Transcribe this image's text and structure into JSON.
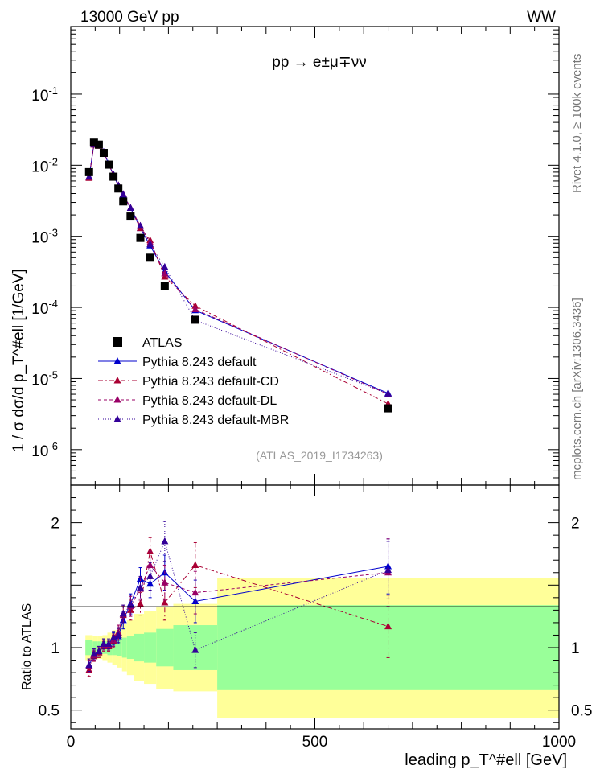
{
  "header": {
    "left": "13000 GeV pp",
    "right": "WW"
  },
  "side_labels": {
    "rivet": "Rivet 4.1.0, ≥ 100k events",
    "mcplots": "mcplots.cern.ch [arXiv:1306.3436]"
  },
  "colors": {
    "atlas": "#000000",
    "default": "#0000cc",
    "cd": "#aa0033",
    "dl": "#990066",
    "mbr": "#330099",
    "band_inner": "#99ff99",
    "band_outer": "#ffff99"
  },
  "chart_data": [
    {
      "type": "scatter",
      "panel": "main",
      "title": "pp → e±μ∓νν",
      "ylabel": "1 / σ  dσ/d p_T^#ell [1/GeV]",
      "xlabel": "leading p_T^#ell [GeV]",
      "xlim": [
        0,
        1000
      ],
      "ylim_log10": [
        -6.5,
        -0.05
      ],
      "yscale": "log",
      "ytick_labels": [
        "10^-6",
        "10^-5",
        "10^-4",
        "10^-3",
        "10^-2",
        "10^-1"
      ],
      "annotation": "(ATLAS_2019_I1734263)",
      "x": [
        37.5,
        47.5,
        57.5,
        67.5,
        77.5,
        87.5,
        97.5,
        107.5,
        122.5,
        142.5,
        162.5,
        192.5,
        255,
        650
      ],
      "atlas": [
        0.008,
        0.0208,
        0.0195,
        0.0149,
        0.0102,
        0.0069,
        0.0047,
        0.0031,
        0.0019,
        0.00095,
        0.0005,
        0.0002,
        6.7e-05,
        3.8e-06
      ],
      "series": [
        {
          "name": "Pythia 8.243 default",
          "key": "default",
          "dash": "",
          "values": [
            0.0068,
            0.0196,
            0.0189,
            0.0154,
            0.0105,
            0.0073,
            0.0051,
            0.0038,
            0.0025,
            0.0013,
            0.00074,
            0.00032,
            9.1e-05,
            6.2e-06
          ]
        },
        {
          "name": "Pythia 8.243 default-CD",
          "key": "cd",
          "dash": "6,3,2,3",
          "values": [
            0.0066,
            0.0194,
            0.0187,
            0.0151,
            0.0103,
            0.0072,
            0.0052,
            0.0039,
            0.0025,
            0.0013,
            0.00088,
            0.00027,
            0.000105,
            4.4e-06
          ]
        },
        {
          "name": "Pythia 8.243 default-DL",
          "key": "dl",
          "dash": "4,3",
          "values": [
            0.0068,
            0.0196,
            0.0189,
            0.0152,
            0.0104,
            0.0073,
            0.0052,
            0.0039,
            0.0025,
            0.0014,
            0.00082,
            0.0003,
            9.4e-05,
            6e-06
          ]
        },
        {
          "name": "Pythia 8.243 default-MBR",
          "key": "mbr",
          "dash": "1,2",
          "values": [
            0.0069,
            0.0197,
            0.0189,
            0.0153,
            0.0105,
            0.0074,
            0.0052,
            0.0039,
            0.0025,
            0.0014,
            0.00077,
            0.00037,
            6.6e-05,
            6.1e-06
          ]
        }
      ],
      "legend": [
        "ATLAS",
        "Pythia 8.243 default",
        "Pythia 8.243 default-CD",
        "Pythia 8.243 default-DL",
        "Pythia 8.243 default-MBR"
      ],
      "legend_placement": "bottom-left"
    },
    {
      "type": "line",
      "panel": "ratio",
      "ylabel": "Ratio to ATLAS",
      "xlabel": "leading p_T^#ell [GeV]",
      "xlim": [
        0,
        1000
      ],
      "ylim": [
        0.35,
        2.3
      ],
      "ytick_labels": [
        "0.5",
        "1",
        "2"
      ],
      "xtick_labels": [
        "0",
        "500",
        "1000"
      ],
      "x": [
        37.5,
        47.5,
        57.5,
        67.5,
        77.5,
        87.5,
        97.5,
        107.5,
        122.5,
        142.5,
        162.5,
        192.5,
        255,
        650
      ],
      "bins": [
        [
          30,
          45
        ],
        [
          45,
          55
        ],
        [
          55,
          65
        ],
        [
          65,
          75
        ],
        [
          75,
          85
        ],
        [
          85,
          95
        ],
        [
          95,
          105
        ],
        [
          105,
          115
        ],
        [
          115,
          130
        ],
        [
          130,
          150
        ],
        [
          150,
          175
        ],
        [
          175,
          210
        ],
        [
          210,
          300
        ],
        [
          300,
          1000
        ]
      ],
      "band_inner": [
        0.06,
        0.05,
        0.05,
        0.05,
        0.06,
        0.06,
        0.07,
        0.08,
        0.09,
        0.11,
        0.12,
        0.15,
        0.18,
        0.34
      ],
      "band_outer": [
        0.1,
        0.09,
        0.09,
        0.1,
        0.12,
        0.14,
        0.16,
        0.19,
        0.22,
        0.27,
        0.29,
        0.33,
        0.35,
        0.56
      ],
      "series": [
        {
          "name": "Pythia 8.243 default",
          "key": "default",
          "values": [
            0.86,
            0.94,
            0.97,
            1.03,
            1.02,
            1.07,
            1.09,
            1.22,
            1.35,
            1.55,
            1.51,
            1.6,
            1.37,
            1.65
          ],
          "errors": [
            0.05,
            0.04,
            0.04,
            0.04,
            0.04,
            0.05,
            0.06,
            0.07,
            0.08,
            0.09,
            0.11,
            0.14,
            0.17,
            0.22
          ]
        },
        {
          "name": "Pythia 8.243 default-CD",
          "key": "cd",
          "values": [
            0.82,
            0.93,
            0.96,
            1.01,
            1.01,
            1.05,
            1.12,
            1.26,
            1.3,
            1.35,
            1.77,
            1.36,
            1.66,
            1.17
          ],
          "errors": [
            0.05,
            0.04,
            0.04,
            0.04,
            0.04,
            0.05,
            0.06,
            0.07,
            0.08,
            0.09,
            0.11,
            0.14,
            0.18,
            0.25
          ]
        },
        {
          "name": "Pythia 8.243 default-DL",
          "key": "dl",
          "values": [
            0.85,
            0.94,
            0.97,
            1.02,
            1.02,
            1.06,
            1.12,
            1.27,
            1.33,
            1.47,
            1.66,
            1.52,
            1.44,
            1.6
          ],
          "errors": [
            0.05,
            0.04,
            0.04,
            0.04,
            0.04,
            0.05,
            0.06,
            0.07,
            0.08,
            0.09,
            0.11,
            0.14,
            0.17,
            0.27
          ]
        },
        {
          "name": "Pythia 8.243 default-MBR",
          "key": "mbr",
          "values": [
            0.86,
            0.95,
            0.97,
            1.03,
            1.03,
            1.08,
            1.1,
            1.27,
            1.34,
            1.48,
            1.57,
            1.85,
            0.98,
            1.62
          ],
          "errors": [
            0.05,
            0.04,
            0.04,
            0.04,
            0.04,
            0.05,
            0.06,
            0.07,
            0.08,
            0.09,
            0.11,
            0.16,
            0.14,
            0.23
          ]
        }
      ]
    }
  ]
}
